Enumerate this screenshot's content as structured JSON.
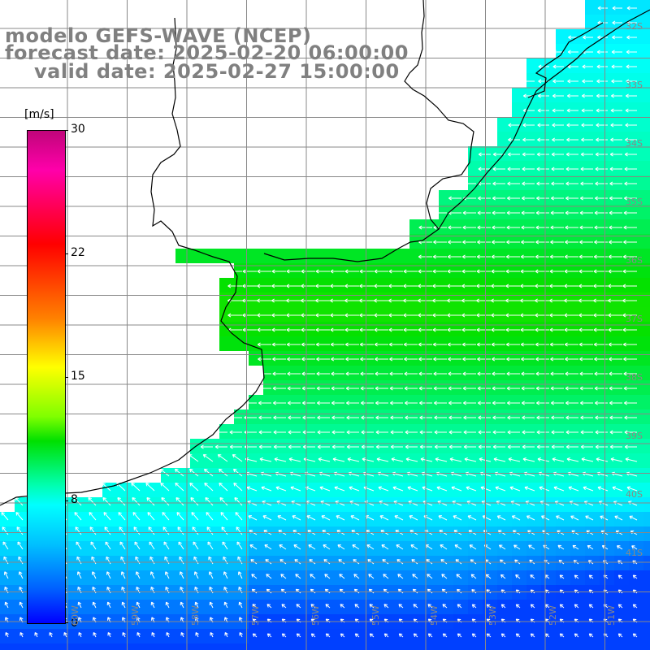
{
  "title": {
    "line1": "modelo GEFS-WAVE (NCEP)",
    "line2": "forecast date: 2025-02-20 06:00:00",
    "line3": "valid date: 2025-02-27 15:00:00"
  },
  "colorbar": {
    "unit": "[m/s]",
    "ticks": [
      "30",
      "22",
      "15",
      "8",
      "0"
    ]
  },
  "lat_labels": [
    "32S",
    "33S",
    "34S",
    "35S",
    "36S",
    "37S",
    "38S",
    "39S",
    "40S",
    "41S"
  ],
  "lon_labels": [
    "60W",
    "59W",
    "58W",
    "57W",
    "56W",
    "55W",
    "54W",
    "53W",
    "52W",
    "51W"
  ],
  "colors": {
    "land": "#ffffff",
    "coast": "#000000",
    "grid": "#888888",
    "arrows": "#ffffff",
    "title": "#808080"
  }
}
